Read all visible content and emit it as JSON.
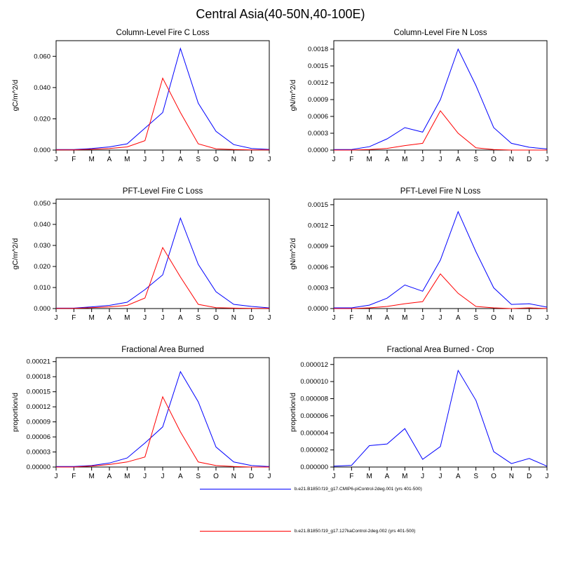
{
  "page_title": "Central Asia(40-50N,40-100E)",
  "months": [
    "J",
    "F",
    "M",
    "A",
    "M",
    "J",
    "J",
    "A",
    "S",
    "O",
    "N",
    "D",
    "J"
  ],
  "colors": {
    "series1": "#0000ff",
    "series2": "#ff0000",
    "axis": "#000000"
  },
  "legend": [
    {
      "label": "b.e21.B1850.f19_g17.CMIP6-piControl-2deg.001 (yrs 401-500)",
      "color": "#0000ff"
    },
    {
      "label": "b.e21.B1850.f19_g17.127kaControl-2deg.002 (yrs 401-500)",
      "color": "#ff0000"
    }
  ],
  "chart_data": [
    {
      "type": "line",
      "title": "Column-Level Fire C Loss",
      "ylabel": "gC/m^2/d",
      "x_categories": [
        "J",
        "F",
        "M",
        "A",
        "M",
        "J",
        "J",
        "A",
        "S",
        "O",
        "N",
        "D",
        "J"
      ],
      "ylim": [
        0,
        0.07
      ],
      "yticks": [
        "0.000",
        "0.020",
        "0.040",
        "0.060"
      ],
      "series": [
        {
          "name": "piControl",
          "color": "#0000ff",
          "values": [
            0.0003,
            0.0003,
            0.001,
            0.002,
            0.004,
            0.014,
            0.024,
            0.065,
            0.03,
            0.012,
            0.0035,
            0.001,
            0.0004
          ]
        },
        {
          "name": "127kaControl",
          "color": "#ff0000",
          "values": [
            0.0001,
            0.0001,
            0.0005,
            0.001,
            0.002,
            0.006,
            0.046,
            0.024,
            0.004,
            0.0008,
            0.0003,
            0.0001,
            0.0001
          ]
        }
      ]
    },
    {
      "type": "line",
      "title": "Column-Level Fire N Loss",
      "ylabel": "gN/m^2/d",
      "x_categories": [
        "J",
        "F",
        "M",
        "A",
        "M",
        "J",
        "J",
        "A",
        "S",
        "O",
        "N",
        "D",
        "J"
      ],
      "ylim": [
        0,
        0.00195
      ],
      "yticks": [
        "0.0000",
        "0.0003",
        "0.0006",
        "0.0009",
        "0.0012",
        "0.0015",
        "0.0018"
      ],
      "series": [
        {
          "name": "piControl",
          "color": "#0000ff",
          "values": [
            1e-05,
            1e-05,
            6e-05,
            0.0002,
            0.0004,
            0.00032,
            0.0009,
            0.0018,
            0.00115,
            0.0004,
            0.00012,
            5e-05,
            2e-05
          ]
        },
        {
          "name": "127kaControl",
          "color": "#ff0000",
          "values": [
            0.0,
            0.0,
            1e-05,
            3e-05,
            8e-05,
            0.00012,
            0.0007,
            0.0003,
            4e-05,
            1e-05,
            0.0,
            0.0,
            0.0
          ]
        }
      ]
    },
    {
      "type": "line",
      "title": "PFT-Level Fire C Loss",
      "ylabel": "gC/m^2/d",
      "x_categories": [
        "J",
        "F",
        "M",
        "A",
        "M",
        "J",
        "J",
        "A",
        "S",
        "O",
        "N",
        "D",
        "J"
      ],
      "ylim": [
        0,
        0.052
      ],
      "yticks": [
        "0.000",
        "0.010",
        "0.020",
        "0.030",
        "0.040",
        "0.050"
      ],
      "series": [
        {
          "name": "piControl",
          "color": "#0000ff",
          "values": [
            0.0002,
            0.0002,
            0.0008,
            0.0015,
            0.003,
            0.009,
            0.016,
            0.043,
            0.021,
            0.008,
            0.002,
            0.001,
            0.0003
          ]
        },
        {
          "name": "127kaControl",
          "color": "#ff0000",
          "values": [
            0.0001,
            0.0001,
            0.0004,
            0.0008,
            0.0015,
            0.005,
            0.029,
            0.015,
            0.002,
            0.0004,
            0.0002,
            0.0001,
            0.0001
          ]
        }
      ]
    },
    {
      "type": "line",
      "title": "PFT-Level Fire N Loss",
      "ylabel": "gN/m^2/d",
      "x_categories": [
        "J",
        "F",
        "M",
        "A",
        "M",
        "J",
        "J",
        "A",
        "S",
        "O",
        "N",
        "D",
        "J"
      ],
      "ylim": [
        0,
        0.00158
      ],
      "yticks": [
        "0.0000",
        "0.0003",
        "0.0006",
        "0.0009",
        "0.0012",
        "0.0015"
      ],
      "series": [
        {
          "name": "piControl",
          "color": "#0000ff",
          "values": [
            1e-05,
            1e-05,
            5e-05,
            0.00015,
            0.00034,
            0.00025,
            0.0007,
            0.0014,
            0.00082,
            0.0003,
            6e-05,
            7e-05,
            2e-05
          ]
        },
        {
          "name": "127kaControl",
          "color": "#ff0000",
          "values": [
            0.0,
            0.0,
            1e-05,
            3e-05,
            7e-05,
            0.0001,
            0.0005,
            0.00022,
            3e-05,
            1e-05,
            0.0,
            1e-05,
            0.0
          ]
        }
      ]
    },
    {
      "type": "line",
      "title": "Fractional Area Burned",
      "ylabel": "proportion/d",
      "x_categories": [
        "J",
        "F",
        "M",
        "A",
        "M",
        "J",
        "J",
        "A",
        "S",
        "O",
        "N",
        "D",
        "J"
      ],
      "ylim": [
        0,
        0.000218
      ],
      "yticks": [
        "0.00000",
        "0.00003",
        "0.00006",
        "0.00009",
        "0.00012",
        "0.00015",
        "0.00018",
        "0.00021"
      ],
      "series": [
        {
          "name": "piControl",
          "color": "#0000ff",
          "values": [
            1e-06,
            1e-06,
            3e-06,
            8e-06,
            1.8e-05,
            4.8e-05,
            8e-05,
            0.00019,
            0.00013,
            4e-05,
            1e-05,
            3e-06,
            1e-06
          ]
        },
        {
          "name": "127kaControl",
          "color": "#ff0000",
          "values": [
            0.0,
            0.0,
            2e-06,
            5e-06,
            1e-05,
            2e-05,
            0.00014,
            7e-05,
            1e-05,
            3e-06,
            1e-06,
            0.0,
            0.0
          ]
        }
      ]
    },
    {
      "type": "line",
      "title": "Fractional Area Burned - Crop",
      "ylabel": "proportion/d",
      "x_categories": [
        "J",
        "F",
        "M",
        "A",
        "M",
        "J",
        "J",
        "A",
        "S",
        "O",
        "N",
        "D",
        "J"
      ],
      "ylim": [
        0,
        1.28e-05
      ],
      "yticks": [
        "0.000000",
        "0.000002",
        "0.000004",
        "0.000006",
        "0.000008",
        "0.000010",
        "0.000012"
      ],
      "series": [
        {
          "name": "piControl",
          "color": "#0000ff",
          "values": [
            1e-07,
            2e-07,
            2.5e-06,
            2.7e-06,
            4.5e-06,
            9e-07,
            2.4e-06,
            1.13e-05,
            7.8e-06,
            1.8e-06,
            4e-07,
            1e-06,
            1e-07
          ]
        }
      ]
    }
  ]
}
